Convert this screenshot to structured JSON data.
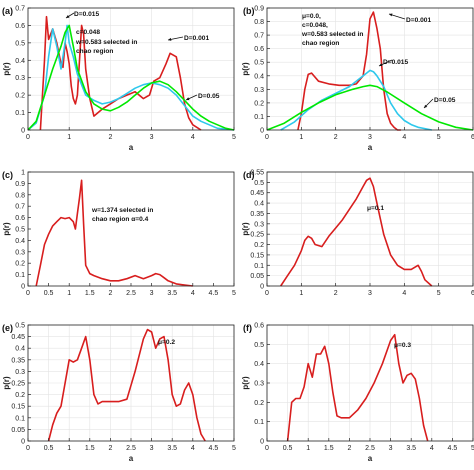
{
  "chart_data": [
    {
      "type": "line",
      "panel_label": "(a)",
      "xlabel": "a",
      "ylabel": "p(r)",
      "xlim": [
        0,
        5
      ],
      "ylim": [
        0,
        0.7
      ],
      "xticks": [
        "0",
        "1",
        "2",
        "3",
        "4",
        "5"
      ],
      "yticks": [
        "0",
        "0.1",
        "0.2",
        "0.3",
        "0.4",
        "0.5",
        "0.6",
        "0.7"
      ],
      "grid": true,
      "annotations": [
        {
          "text": "D=0.015"
        },
        {
          "text": "c=0.048"
        },
        {
          "text": "w=0.583 selected in"
        },
        {
          "text": "chao region"
        },
        {
          "text": "D=0.001"
        },
        {
          "text": "D=0.05"
        }
      ],
      "series": [
        {
          "color": "#d81e1e",
          "x": [
            0.3,
            0.4,
            0.45,
            0.5,
            0.55,
            0.6,
            0.7,
            0.8,
            0.85,
            0.9,
            0.95,
            1.0,
            1.05,
            1.1,
            1.15,
            1.2,
            1.3,
            1.35,
            1.4,
            1.5,
            1.6,
            1.8,
            2.0,
            2.2,
            2.4,
            2.6,
            2.8,
            2.95,
            3.05,
            3.2,
            3.35,
            3.45,
            3.6,
            3.7,
            3.8,
            3.9,
            4.0,
            4.2
          ],
          "y": [
            0.0,
            0.4,
            0.65,
            0.52,
            0.55,
            0.58,
            0.5,
            0.38,
            0.36,
            0.5,
            0.45,
            0.38,
            0.25,
            0.18,
            0.15,
            0.2,
            0.6,
            0.55,
            0.35,
            0.18,
            0.08,
            0.12,
            0.15,
            0.18,
            0.2,
            0.22,
            0.18,
            0.2,
            0.28,
            0.3,
            0.38,
            0.44,
            0.42,
            0.3,
            0.15,
            0.07,
            0.03,
            0.0
          ]
        },
        {
          "color": "#2ec8ec",
          "x": [
            0.0,
            0.2,
            0.4,
            0.5,
            0.6,
            0.7,
            0.8,
            0.9,
            0.95,
            1.0,
            1.1,
            1.2,
            1.4,
            1.6,
            1.8,
            2.0,
            2.2,
            2.4,
            2.6,
            2.8,
            3.0,
            3.2,
            3.4,
            3.6,
            3.8,
            4.0,
            4.2,
            4.4,
            4.6,
            4.8,
            5.0
          ],
          "y": [
            0.0,
            0.04,
            0.2,
            0.42,
            0.58,
            0.48,
            0.35,
            0.5,
            0.6,
            0.5,
            0.42,
            0.32,
            0.2,
            0.17,
            0.15,
            0.16,
            0.18,
            0.21,
            0.24,
            0.26,
            0.27,
            0.26,
            0.24,
            0.2,
            0.14,
            0.08,
            0.05,
            0.03,
            0.01,
            0.005,
            0.0
          ]
        },
        {
          "color": "#00e800",
          "x": [
            0.0,
            0.2,
            0.4,
            0.6,
            0.8,
            0.9,
            1.0,
            1.1,
            1.2,
            1.4,
            1.6,
            1.8,
            2.0,
            2.2,
            2.4,
            2.6,
            2.8,
            3.0,
            3.2,
            3.4,
            3.6,
            3.8,
            4.0,
            4.2,
            4.4,
            4.6,
            4.8,
            5.0
          ],
          "y": [
            0.0,
            0.05,
            0.2,
            0.35,
            0.48,
            0.56,
            0.6,
            0.48,
            0.35,
            0.22,
            0.15,
            0.12,
            0.11,
            0.13,
            0.16,
            0.2,
            0.24,
            0.27,
            0.28,
            0.26,
            0.22,
            0.17,
            0.12,
            0.08,
            0.05,
            0.03,
            0.01,
            0.0
          ]
        }
      ]
    },
    {
      "type": "line",
      "panel_label": "(b)",
      "xlabel": "a",
      "ylabel": "p(r)",
      "xlim": [
        0,
        6
      ],
      "ylim": [
        0,
        0.9
      ],
      "xticks": [
        "0",
        "1",
        "2",
        "3",
        "4",
        "5",
        "6"
      ],
      "yticks": [
        "0",
        "0.1",
        "0.2",
        "0.3",
        "0.4",
        "0.5",
        "0.6",
        "0.7",
        "0.8",
        "0.9"
      ],
      "grid": true,
      "annotations": [
        {
          "text": "μ=0.0,"
        },
        {
          "text": "c=0.048,"
        },
        {
          "text": "w=0.583 selected in"
        },
        {
          "text": "chao region"
        },
        {
          "text": "D=0.001"
        },
        {
          "text": "D=0.015"
        },
        {
          "text": "D=0.05"
        }
      ],
      "series": [
        {
          "color": "#d81e1e",
          "x": [
            0.9,
            1.0,
            1.1,
            1.2,
            1.3,
            1.5,
            1.8,
            2.1,
            2.4,
            2.6,
            2.8,
            2.9,
            3.0,
            3.1,
            3.2,
            3.3,
            3.4,
            3.5,
            3.6,
            3.7,
            3.8,
            3.9
          ],
          "y": [
            0.0,
            0.12,
            0.3,
            0.41,
            0.42,
            0.36,
            0.34,
            0.33,
            0.33,
            0.34,
            0.4,
            0.56,
            0.82,
            0.87,
            0.75,
            0.6,
            0.3,
            0.12,
            0.05,
            0.02,
            0.0,
            0.0
          ]
        },
        {
          "color": "#2ec8ec",
          "x": [
            0.4,
            0.8,
            1.2,
            1.6,
            2.0,
            2.4,
            2.7,
            2.9,
            3.0,
            3.1,
            3.2,
            3.4,
            3.6,
            3.8,
            4.0,
            4.2,
            4.4,
            4.6,
            4.8
          ],
          "y": [
            0.0,
            0.06,
            0.15,
            0.22,
            0.27,
            0.32,
            0.38,
            0.42,
            0.44,
            0.43,
            0.4,
            0.32,
            0.2,
            0.12,
            0.07,
            0.04,
            0.02,
            0.01,
            0.0
          ]
        },
        {
          "color": "#00e800",
          "x": [
            0.0,
            0.5,
            1.0,
            1.5,
            2.0,
            2.5,
            2.8,
            3.0,
            3.2,
            3.5,
            4.0,
            4.5,
            5.0,
            5.5,
            6.0
          ],
          "y": [
            0.0,
            0.05,
            0.13,
            0.2,
            0.26,
            0.3,
            0.32,
            0.33,
            0.32,
            0.28,
            0.2,
            0.12,
            0.06,
            0.02,
            0.0
          ]
        }
      ]
    },
    {
      "type": "line",
      "panel_label": "(c)",
      "xlabel": "",
      "ylabel": "p(r)",
      "xlim": [
        0,
        5
      ],
      "ylim": [
        0,
        1.1
      ],
      "xticks": [
        "0",
        "0.5",
        "1",
        "1.5",
        "2",
        "2.5",
        "3",
        "3.5",
        "4",
        "4.5",
        "5"
      ],
      "yticks": [
        "0",
        "0.1",
        "0.2",
        "0.3",
        "0.4",
        "0.5",
        "0.6",
        "0.7",
        "0.8",
        "0.9",
        "1"
      ],
      "grid": false,
      "annotations": [
        {
          "text": "w=1.374 selected in"
        },
        {
          "text": "chao region α=0.4"
        }
      ],
      "series": [
        {
          "color": "#d81e1e",
          "x": [
            0.2,
            0.3,
            0.4,
            0.5,
            0.6,
            0.7,
            0.8,
            0.9,
            1.0,
            1.1,
            1.15,
            1.2,
            1.25,
            1.3,
            1.35,
            1.4,
            1.5,
            1.6,
            1.8,
            2.0,
            2.2,
            2.4,
            2.6,
            2.8,
            3.0,
            3.1,
            3.2,
            3.3,
            3.4,
            3.6,
            3.8,
            4.0
          ],
          "y": [
            0.0,
            0.2,
            0.4,
            0.5,
            0.58,
            0.62,
            0.66,
            0.65,
            0.66,
            0.62,
            0.55,
            0.7,
            0.85,
            1.02,
            0.6,
            0.2,
            0.12,
            0.1,
            0.07,
            0.05,
            0.05,
            0.07,
            0.1,
            0.07,
            0.1,
            0.12,
            0.11,
            0.08,
            0.05,
            0.02,
            0.01,
            0.0
          ]
        }
      ]
    },
    {
      "type": "line",
      "panel_label": "(d)",
      "xlabel": "",
      "ylabel": "p(r)",
      "xlim": [
        0,
        6
      ],
      "ylim": [
        0,
        0.55
      ],
      "xticks": [
        "0",
        "1",
        "2",
        "3",
        "4",
        "5",
        "6"
      ],
      "yticks": [
        "0",
        "0.05",
        "0.1",
        "0.15",
        "0.2",
        "0.25",
        "0.3",
        "0.35",
        "0.4",
        "0.45",
        "0.5",
        "0.55"
      ],
      "grid": true,
      "annotations": [
        {
          "text": "μ=0.1"
        }
      ],
      "series": [
        {
          "color": "#d81e1e",
          "x": [
            0.4,
            0.6,
            0.8,
            1.0,
            1.1,
            1.2,
            1.3,
            1.4,
            1.6,
            1.8,
            2.0,
            2.2,
            2.4,
            2.6,
            2.8,
            2.9,
            3.0,
            3.1,
            3.2,
            3.4,
            3.6,
            3.8,
            4.0,
            4.2,
            4.4,
            4.5,
            4.6,
            4.8
          ],
          "y": [
            0.0,
            0.05,
            0.1,
            0.17,
            0.22,
            0.24,
            0.23,
            0.2,
            0.19,
            0.24,
            0.28,
            0.32,
            0.37,
            0.42,
            0.48,
            0.51,
            0.52,
            0.48,
            0.4,
            0.25,
            0.15,
            0.1,
            0.08,
            0.08,
            0.1,
            0.07,
            0.03,
            0.0
          ]
        }
      ]
    },
    {
      "type": "line",
      "panel_label": "(e)",
      "xlabel": "a",
      "ylabel": "p(r)",
      "xlim": [
        0,
        5
      ],
      "ylim": [
        0,
        0.5
      ],
      "xticks": [
        "0",
        "0.5",
        "1",
        "1.5",
        "2",
        "2.5",
        "3",
        "3.5",
        "4",
        "4.5",
        "5"
      ],
      "yticks": [
        "0",
        "0.05",
        "0.1",
        "0.15",
        "0.2",
        "0.25",
        "0.3",
        "0.35",
        "0.4",
        "0.45",
        "0.5"
      ],
      "grid": true,
      "annotations": [
        {
          "text": "μ=0.2"
        }
      ],
      "series": [
        {
          "color": "#d81e1e",
          "x": [
            0.5,
            0.6,
            0.7,
            0.8,
            0.9,
            1.0,
            1.1,
            1.2,
            1.3,
            1.4,
            1.5,
            1.6,
            1.7,
            1.8,
            2.0,
            2.2,
            2.4,
            2.5,
            2.6,
            2.8,
            2.9,
            3.0,
            3.1,
            3.2,
            3.3,
            3.4,
            3.5,
            3.6,
            3.7,
            3.8,
            3.9,
            4.0,
            4.1,
            4.2,
            4.3
          ],
          "y": [
            0.0,
            0.07,
            0.12,
            0.15,
            0.25,
            0.35,
            0.34,
            0.35,
            0.4,
            0.45,
            0.35,
            0.2,
            0.16,
            0.17,
            0.17,
            0.17,
            0.18,
            0.24,
            0.3,
            0.44,
            0.48,
            0.47,
            0.4,
            0.44,
            0.45,
            0.35,
            0.2,
            0.15,
            0.16,
            0.22,
            0.25,
            0.2,
            0.1,
            0.03,
            0.0
          ]
        }
      ]
    },
    {
      "type": "line",
      "panel_label": "(f)",
      "xlabel": "a",
      "ylabel": "p(r)",
      "xlim": [
        0,
        5
      ],
      "ylim": [
        0,
        0.6
      ],
      "xticks": [
        "0",
        "0.5",
        "1",
        "1.5",
        "2",
        "2.5",
        "3",
        "3.5",
        "4",
        "4.5",
        "5"
      ],
      "yticks": [
        "0",
        "0.1",
        "0.2",
        "0.3",
        "0.4",
        "0.5",
        "0.6"
      ],
      "grid": true,
      "annotations": [
        {
          "text": "μ=0.3"
        }
      ],
      "series": [
        {
          "color": "#d81e1e",
          "x": [
            0.5,
            0.6,
            0.7,
            0.8,
            0.9,
            1.0,
            1.1,
            1.2,
            1.3,
            1.4,
            1.5,
            1.6,
            1.7,
            1.8,
            2.0,
            2.2,
            2.4,
            2.6,
            2.8,
            3.0,
            3.1,
            3.2,
            3.3,
            3.4,
            3.5,
            3.6,
            3.7,
            3.8,
            3.9
          ],
          "y": [
            0.0,
            0.2,
            0.22,
            0.22,
            0.28,
            0.4,
            0.33,
            0.45,
            0.45,
            0.49,
            0.4,
            0.25,
            0.13,
            0.12,
            0.12,
            0.16,
            0.22,
            0.3,
            0.4,
            0.52,
            0.55,
            0.4,
            0.3,
            0.34,
            0.35,
            0.32,
            0.22,
            0.08,
            0.0
          ]
        }
      ]
    }
  ]
}
